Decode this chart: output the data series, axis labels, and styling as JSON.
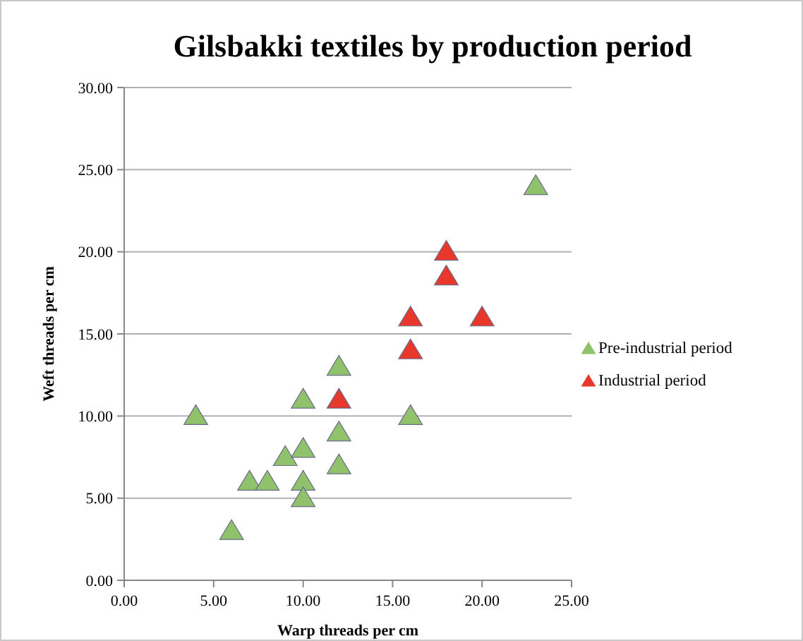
{
  "chart_data": {
    "type": "scatter",
    "title": "Gilsbakki textiles by production period",
    "xlabel": "Warp threads per cm",
    "ylabel": "Weft threads per cm",
    "xlim": [
      0,
      25
    ],
    "xticks": [
      {
        "value": 0,
        "label": "0.00"
      },
      {
        "value": 5,
        "label": "5.00"
      },
      {
        "value": 10,
        "label": "10.00"
      },
      {
        "value": 15,
        "label": "15.00"
      },
      {
        "value": 20,
        "label": "20.00"
      },
      {
        "value": 25,
        "label": "25.00"
      }
    ],
    "ylim": [
      0,
      30
    ],
    "yticks": [
      {
        "value": 0,
        "label": "0.00"
      },
      {
        "value": 5,
        "label": "5.00"
      },
      {
        "value": 10,
        "label": "10.00"
      },
      {
        "value": 15,
        "label": "15.00"
      },
      {
        "value": 20,
        "label": "20.00"
      },
      {
        "value": 25,
        "label": "25.00"
      },
      {
        "value": 30,
        "label": "30.00"
      }
    ],
    "grid": "y",
    "legend": "right",
    "marker": "triangle",
    "series": [
      {
        "name": "Pre-industrial period",
        "color": "#8fc26a",
        "x": [
          4,
          6,
          7,
          8,
          9,
          10,
          10,
          10,
          10,
          12,
          12,
          12,
          16,
          23
        ],
        "values": [
          10,
          3,
          6,
          6,
          7.5,
          8,
          6,
          5,
          11,
          13,
          9,
          7,
          10,
          24
        ]
      },
      {
        "name": "Industrial period",
        "color": "#e8382b",
        "x": [
          12,
          16,
          16,
          18,
          18,
          20
        ],
        "values": [
          11,
          16,
          14,
          20,
          18.5,
          16
        ]
      }
    ]
  }
}
